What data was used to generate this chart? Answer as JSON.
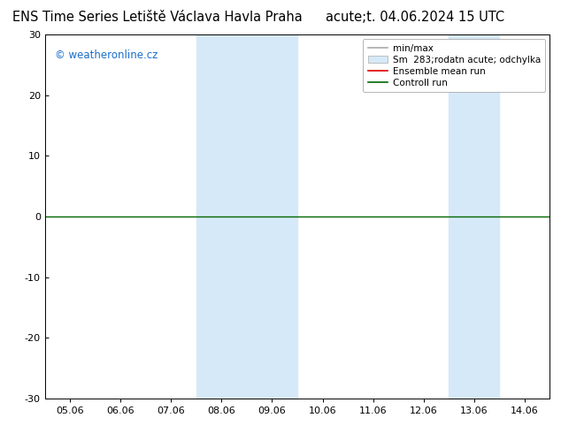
{
  "title_left": "ENS Time Series Letiště Václava Havla Praha",
  "title_right": "acute;t. 04.06.2024 15 UTC",
  "watermark": "© weatheronline.cz",
  "ylim": [
    -30,
    30
  ],
  "yticks": [
    -30,
    -20,
    -10,
    0,
    10,
    20,
    30
  ],
  "xtick_labels": [
    "05.06",
    "06.06",
    "07.06",
    "08.06",
    "09.06",
    "10.06",
    "11.06",
    "12.06",
    "13.06",
    "14.06"
  ],
  "shade_indices": [
    3,
    4,
    8
  ],
  "shade_color": "#d6e9f8",
  "background_color": "#ffffff",
  "legend_entries": [
    "min/max",
    "Sm  283;rodatn acute; odchylka",
    "Ensemble mean run",
    "Controll run"
  ],
  "legend_line_color": "#aaaaaa",
  "legend_shade_color": "#d6e9f8",
  "ensemble_color": "#dd0000",
  "control_color": "#006600",
  "zero_line_color": "#006600",
  "title_fontsize": 10.5,
  "tick_fontsize": 8,
  "watermark_color": "#1a6ecc",
  "watermark_fontsize": 8.5,
  "legend_fontsize": 7.5
}
